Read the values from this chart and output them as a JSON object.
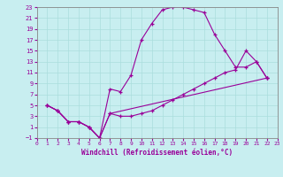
{
  "xlabel": "Windchill (Refroidissement éolien,°C)",
  "xlim": [
    0,
    23
  ],
  "ylim": [
    -1,
    23
  ],
  "xticks": [
    0,
    1,
    2,
    3,
    4,
    5,
    6,
    7,
    8,
    9,
    10,
    11,
    12,
    13,
    14,
    15,
    16,
    17,
    18,
    19,
    20,
    21,
    22,
    23
  ],
  "yticks": [
    -1,
    1,
    3,
    5,
    7,
    9,
    11,
    13,
    15,
    17,
    19,
    21,
    23
  ],
  "bg_color": "#c8eef0",
  "grid_color": "#aadddd",
  "line_color": "#990099",
  "line1_x": [
    1,
    2,
    3,
    4,
    5,
    6,
    7,
    8,
    9,
    10,
    11,
    12,
    13,
    14,
    15,
    16,
    17,
    18,
    19,
    20,
    21,
    22
  ],
  "line1_y": [
    5,
    4,
    2,
    2,
    1,
    -1,
    8,
    7.5,
    10.5,
    17,
    20,
    22.5,
    23,
    23,
    22.5,
    22,
    18,
    15,
    12,
    12,
    13,
    10
  ],
  "line2_x": [
    1,
    2,
    3,
    4,
    5,
    6,
    7,
    8,
    9,
    10,
    11,
    12,
    13,
    14,
    15,
    16,
    17,
    18,
    19,
    20,
    21,
    22
  ],
  "line2_y": [
    5,
    4,
    2,
    2,
    1,
    -1,
    3.5,
    3,
    3,
    3.5,
    4,
    5,
    6,
    7,
    8,
    9,
    10,
    11,
    11.5,
    15,
    13,
    10
  ],
  "line3_x": [
    1,
    2,
    3,
    4,
    5,
    6,
    7,
    22
  ],
  "line3_y": [
    5,
    4,
    2,
    2,
    1,
    -1,
    3.5,
    10
  ],
  "figsize": [
    3.2,
    2.0
  ],
  "dpi": 100
}
